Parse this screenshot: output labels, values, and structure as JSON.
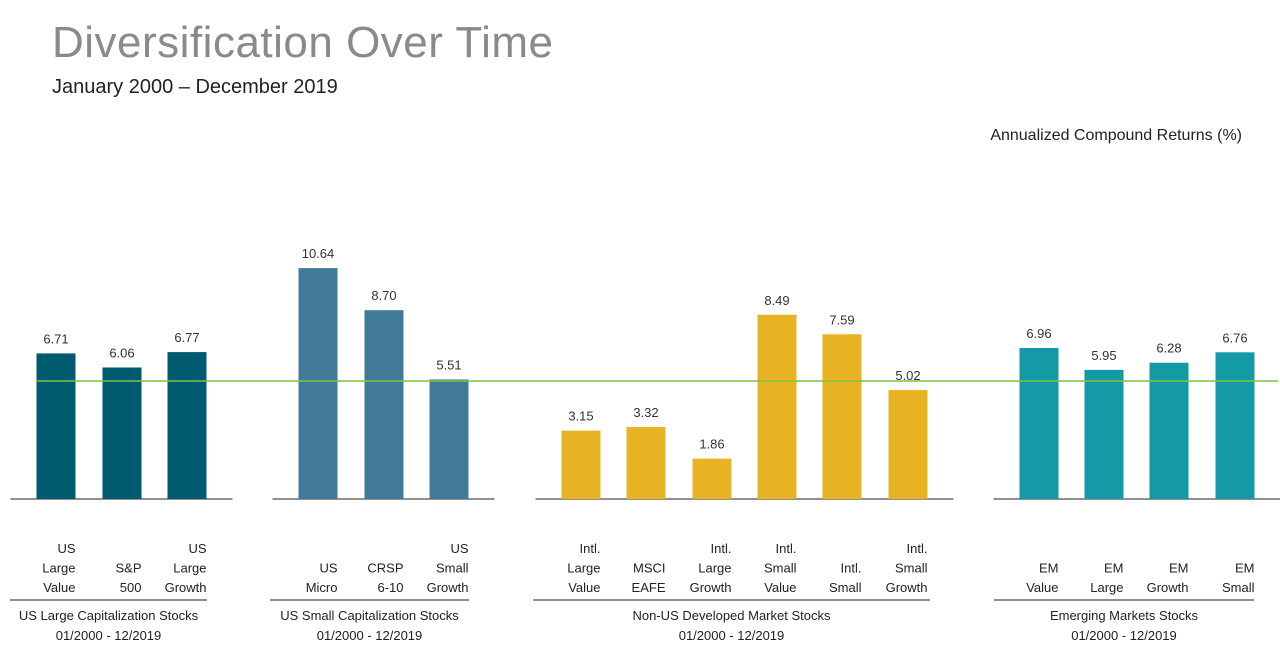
{
  "title": "Diversification Over Time",
  "subtitle": "January 2000 – December 2019",
  "units_label": "Annualized Compound Returns (%)",
  "colors": {
    "us_large": "#005a70",
    "us_small": "#417a99",
    "non_us_developed": "#e8b323",
    "emerging": "#149aa5",
    "reference_line": "#7dc242",
    "axis": "#222222"
  },
  "chart_data": {
    "type": "bar",
    "title": "Diversification Over Time",
    "ylabel": "Annualized Compound Returns (%)",
    "ylim": [
      0,
      12
    ],
    "grid": false,
    "reference_line": {
      "value": 5.44
    },
    "groups": [
      {
        "name": "US Large Capitalization Stocks",
        "period": "01/2000 - 12/2019",
        "color_key": "us_large",
        "bars": [
          {
            "label_lines": [
              "US",
              "Large",
              "Value"
            ],
            "value": 6.71,
            "value_label": "6.71"
          },
          {
            "label_lines": [
              "S&P",
              "500"
            ],
            "value": 6.06,
            "value_label": "6.06"
          },
          {
            "label_lines": [
              "US",
              "Large",
              "Growth"
            ],
            "value": 6.77,
            "value_label": "6.77"
          }
        ]
      },
      {
        "name": "US Small Capitalization Stocks",
        "period": "01/2000 - 12/2019",
        "color_key": "us_small",
        "bars": [
          {
            "label_lines": [
              "US",
              "Micro"
            ],
            "value": 10.64,
            "value_label": "10.64"
          },
          {
            "label_lines": [
              "CRSP",
              "6-10"
            ],
            "value": 8.7,
            "value_label": "8.70"
          },
          {
            "label_lines": [
              "US",
              "Small",
              "Growth"
            ],
            "value": 5.51,
            "value_label": "5.51"
          }
        ]
      },
      {
        "name": "Non-US Developed Market Stocks",
        "period": "01/2000 - 12/2019",
        "color_key": "non_us_developed",
        "bars": [
          {
            "label_lines": [
              "Intl.",
              "Large",
              "Value"
            ],
            "value": 3.15,
            "value_label": "3.15"
          },
          {
            "label_lines": [
              "MSCI",
              "EAFE"
            ],
            "value": 3.32,
            "value_label": "3.32"
          },
          {
            "label_lines": [
              "Intl.",
              "Large",
              "Growth"
            ],
            "value": 1.86,
            "value_label": "1.86"
          },
          {
            "label_lines": [
              "Intl.",
              "Small",
              "Value"
            ],
            "value": 8.49,
            "value_label": "8.49"
          },
          {
            "label_lines": [
              "Intl.",
              "Small"
            ],
            "value": 7.59,
            "value_label": "7.59"
          },
          {
            "label_lines": [
              "Intl.",
              "Small",
              "Growth"
            ],
            "value": 5.02,
            "value_label": "5.02"
          }
        ]
      },
      {
        "name": "Emerging Markets Stocks",
        "period": "01/2000 - 12/2019",
        "color_key": "emerging",
        "bars": [
          {
            "label_lines": [
              "EM",
              "Value"
            ],
            "value": 6.96,
            "value_label": "6.96"
          },
          {
            "label_lines": [
              "EM",
              "Large"
            ],
            "value": 5.95,
            "value_label": "5.95"
          },
          {
            "label_lines": [
              "EM",
              "Growth"
            ],
            "value": 6.28,
            "value_label": "6.28"
          },
          {
            "label_lines": [
              "EM",
              "Small"
            ],
            "value": 6.76,
            "value_label": "6.76"
          }
        ]
      }
    ]
  }
}
